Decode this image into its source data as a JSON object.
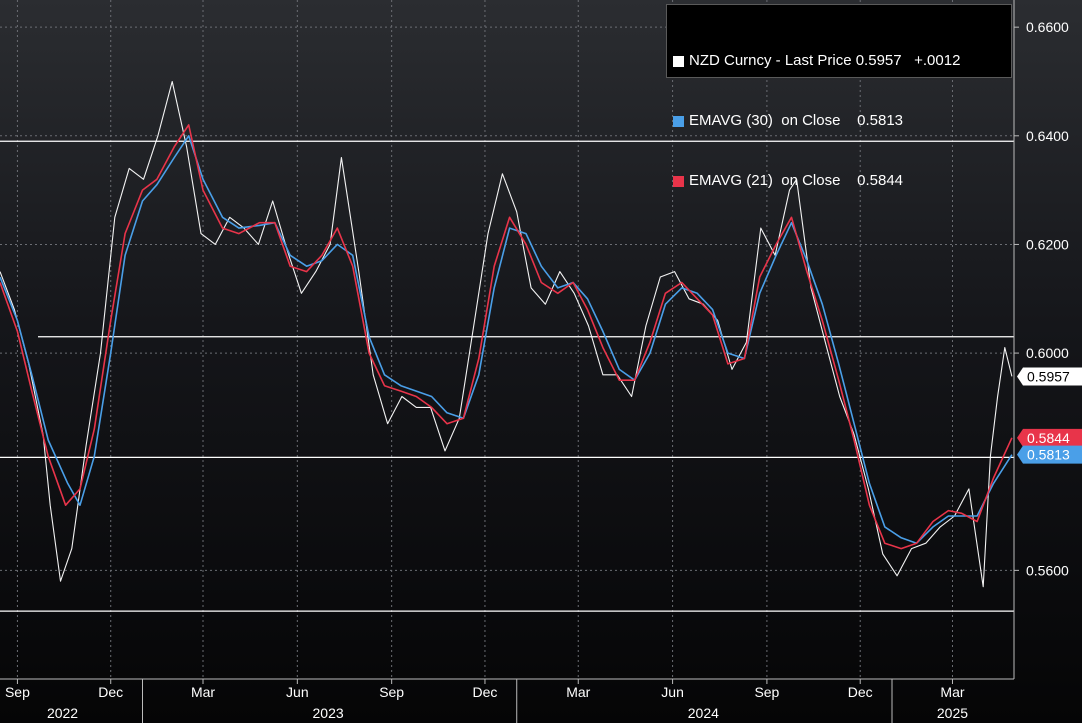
{
  "chart_data": {
    "type": "line",
    "title": "",
    "xlabel": "",
    "ylabel": "",
    "ylim": [
      0.54,
      0.665
    ],
    "xlim": [
      "2022-08-15",
      "2025-04-30"
    ],
    "grid": true,
    "legend_position": "top-right",
    "y_ticks": [
      "0.5600",
      "0.6000",
      "0.6200",
      "0.6400",
      "0.6600"
    ],
    "x_month_ticks": [
      {
        "label": "Sep",
        "date": "2022-09-01"
      },
      {
        "label": "Dec",
        "date": "2022-12-01"
      },
      {
        "label": "Mar",
        "date": "2023-03-01"
      },
      {
        "label": "Jun",
        "date": "2023-06-01"
      },
      {
        "label": "Sep",
        "date": "2023-09-01"
      },
      {
        "label": "Dec",
        "date": "2023-12-01"
      },
      {
        "label": "Mar",
        "date": "2024-03-01"
      },
      {
        "label": "Jun",
        "date": "2024-06-01"
      },
      {
        "label": "Sep",
        "date": "2024-09-01"
      },
      {
        "label": "Dec",
        "date": "2024-12-01"
      },
      {
        "label": "Mar",
        "date": "2025-03-01"
      }
    ],
    "x_year_ticks": [
      {
        "label": "2022",
        "date": "2022-10-15"
      },
      {
        "label": "2023",
        "date": "2023-07-01"
      },
      {
        "label": "2024",
        "date": "2024-07-01"
      },
      {
        "label": "2025",
        "date": "2025-03-01"
      }
    ],
    "reference_lines": [
      0.639,
      0.603,
      0.5808,
      0.5525
    ],
    "series": [
      {
        "name": "NZD Curncy - Last Price",
        "legend_value": "0.5957",
        "legend_change": "+.0012",
        "color": "#ffffff",
        "x": [
          "2022-08-15",
          "2022-08-29",
          "2022-09-12",
          "2022-09-26",
          "2022-10-03",
          "2022-10-13",
          "2022-10-24",
          "2022-11-07",
          "2022-11-21",
          "2022-12-05",
          "2022-12-19",
          "2023-01-02",
          "2023-01-16",
          "2023-01-30",
          "2023-02-13",
          "2023-02-27",
          "2023-03-13",
          "2023-03-27",
          "2023-04-10",
          "2023-04-24",
          "2023-05-08",
          "2023-05-22",
          "2023-06-05",
          "2023-06-19",
          "2023-07-03",
          "2023-07-14",
          "2023-07-31",
          "2023-08-14",
          "2023-08-28",
          "2023-09-11",
          "2023-09-25",
          "2023-10-09",
          "2023-10-23",
          "2023-11-06",
          "2023-11-20",
          "2023-12-04",
          "2023-12-18",
          "2024-01-01",
          "2024-01-15",
          "2024-01-29",
          "2024-02-12",
          "2024-02-26",
          "2024-03-11",
          "2024-03-25",
          "2024-04-08",
          "2024-04-22",
          "2024-05-06",
          "2024-05-20",
          "2024-06-03",
          "2024-06-17",
          "2024-07-01",
          "2024-07-15",
          "2024-07-29",
          "2024-08-12",
          "2024-08-26",
          "2024-09-09",
          "2024-09-23",
          "2024-09-30",
          "2024-10-14",
          "2024-10-28",
          "2024-11-11",
          "2024-11-25",
          "2024-12-09",
          "2024-12-23",
          "2025-01-06",
          "2025-01-20",
          "2025-02-03",
          "2025-02-17",
          "2025-03-03",
          "2025-03-17",
          "2025-03-31",
          "2025-04-07",
          "2025-04-14",
          "2025-04-21",
          "2025-04-28"
        ],
        "values": [
          0.615,
          0.608,
          0.598,
          0.585,
          0.572,
          0.558,
          0.564,
          0.583,
          0.6,
          0.625,
          0.634,
          0.632,
          0.64,
          0.65,
          0.638,
          0.622,
          0.62,
          0.625,
          0.623,
          0.62,
          0.628,
          0.619,
          0.611,
          0.615,
          0.62,
          0.636,
          0.615,
          0.596,
          0.587,
          0.592,
          0.59,
          0.59,
          0.582,
          0.588,
          0.605,
          0.622,
          0.633,
          0.626,
          0.612,
          0.609,
          0.615,
          0.611,
          0.605,
          0.596,
          0.596,
          0.592,
          0.605,
          0.614,
          0.615,
          0.61,
          0.609,
          0.606,
          0.597,
          0.602,
          0.623,
          0.618,
          0.63,
          0.632,
          0.612,
          0.602,
          0.592,
          0.585,
          0.575,
          0.563,
          0.559,
          0.564,
          0.565,
          0.568,
          0.57,
          0.575,
          0.557,
          0.581,
          0.592,
          0.601,
          0.5957
        ]
      },
      {
        "name": "EMAVG (30)  on Close",
        "legend_value": "0.5813",
        "color": "#4a9fe8",
        "x": [
          "2022-08-15",
          "2022-09-01",
          "2022-09-15",
          "2022-10-01",
          "2022-10-20",
          "2022-11-01",
          "2022-11-15",
          "2022-12-01",
          "2022-12-15",
          "2023-01-01",
          "2023-01-15",
          "2023-02-01",
          "2023-02-15",
          "2023-03-01",
          "2023-03-20",
          "2023-04-05",
          "2023-04-25",
          "2023-05-10",
          "2023-05-25",
          "2023-06-10",
          "2023-06-25",
          "2023-07-10",
          "2023-07-25",
          "2023-08-10",
          "2023-08-25",
          "2023-09-10",
          "2023-09-25",
          "2023-10-10",
          "2023-10-25",
          "2023-11-10",
          "2023-11-25",
          "2023-12-10",
          "2023-12-25",
          "2024-01-10",
          "2024-01-25",
          "2024-02-10",
          "2024-02-25",
          "2024-03-10",
          "2024-03-25",
          "2024-04-10",
          "2024-04-25",
          "2024-05-10",
          "2024-05-25",
          "2024-06-10",
          "2024-06-25",
          "2024-07-10",
          "2024-07-25",
          "2024-08-10",
          "2024-08-25",
          "2024-09-10",
          "2024-09-25",
          "2024-10-10",
          "2024-10-25",
          "2024-11-10",
          "2024-11-25",
          "2024-12-10",
          "2024-12-25",
          "2025-01-10",
          "2025-01-25",
          "2025-02-10",
          "2025-02-25",
          "2025-03-10",
          "2025-03-25",
          "2025-04-10",
          "2025-04-28"
        ],
        "values": [
          0.614,
          0.606,
          0.596,
          0.584,
          0.576,
          0.572,
          0.581,
          0.6,
          0.618,
          0.628,
          0.631,
          0.636,
          0.64,
          0.632,
          0.625,
          0.623,
          0.6235,
          0.624,
          0.618,
          0.616,
          0.617,
          0.62,
          0.618,
          0.603,
          0.596,
          0.594,
          0.593,
          0.592,
          0.589,
          0.588,
          0.596,
          0.612,
          0.623,
          0.622,
          0.616,
          0.612,
          0.613,
          0.61,
          0.604,
          0.597,
          0.595,
          0.6,
          0.609,
          0.612,
          0.611,
          0.608,
          0.6,
          0.599,
          0.611,
          0.618,
          0.624,
          0.617,
          0.609,
          0.598,
          0.587,
          0.576,
          0.568,
          0.566,
          0.565,
          0.568,
          0.57,
          0.57,
          0.57,
          0.576,
          0.5813
        ]
      },
      {
        "name": "EMAVG (21)  on Close",
        "legend_value": "0.5844",
        "color": "#e8344a",
        "x": [
          "2022-08-15",
          "2022-09-01",
          "2022-09-15",
          "2022-10-01",
          "2022-10-18",
          "2022-11-01",
          "2022-11-15",
          "2022-12-01",
          "2022-12-15",
          "2023-01-01",
          "2023-01-15",
          "2023-02-01",
          "2023-02-15",
          "2023-03-01",
          "2023-03-20",
          "2023-04-05",
          "2023-04-25",
          "2023-05-10",
          "2023-05-25",
          "2023-06-10",
          "2023-06-25",
          "2023-07-10",
          "2023-07-25",
          "2023-08-10",
          "2023-08-25",
          "2023-09-10",
          "2023-09-25",
          "2023-10-10",
          "2023-10-25",
          "2023-11-10",
          "2023-11-25",
          "2023-12-10",
          "2023-12-25",
          "2024-01-10",
          "2024-01-25",
          "2024-02-10",
          "2024-02-25",
          "2024-03-10",
          "2024-03-25",
          "2024-04-10",
          "2024-04-25",
          "2024-05-10",
          "2024-05-25",
          "2024-06-10",
          "2024-06-25",
          "2024-07-10",
          "2024-07-25",
          "2024-08-10",
          "2024-08-25",
          "2024-09-10",
          "2024-09-25",
          "2024-10-10",
          "2024-10-25",
          "2024-11-10",
          "2024-11-25",
          "2024-12-10",
          "2024-12-25",
          "2025-01-10",
          "2025-01-25",
          "2025-02-10",
          "2025-02-25",
          "2025-03-10",
          "2025-03-25",
          "2025-04-10",
          "2025-04-28"
        ],
        "values": [
          0.613,
          0.604,
          0.593,
          0.581,
          0.572,
          0.575,
          0.586,
          0.606,
          0.622,
          0.63,
          0.632,
          0.638,
          0.642,
          0.63,
          0.623,
          0.622,
          0.624,
          0.624,
          0.616,
          0.615,
          0.618,
          0.623,
          0.616,
          0.6,
          0.594,
          0.593,
          0.592,
          0.59,
          0.587,
          0.588,
          0.599,
          0.616,
          0.625,
          0.62,
          0.613,
          0.611,
          0.613,
          0.608,
          0.601,
          0.595,
          0.595,
          0.602,
          0.611,
          0.613,
          0.61,
          0.607,
          0.598,
          0.599,
          0.614,
          0.62,
          0.625,
          0.615,
          0.606,
          0.595,
          0.584,
          0.572,
          0.565,
          0.564,
          0.565,
          0.569,
          0.571,
          0.5705,
          0.569,
          0.577,
          0.5844
        ]
      }
    ],
    "axis_badges": [
      {
        "value": "0.5957",
        "series": "NZD Curncy - Last Price",
        "bg": "#ffffff",
        "fg": "#000000"
      },
      {
        "value": "0.5844",
        "series": "EMAVG (21)  on Close",
        "bg": "#e8344a",
        "fg": "#ffffff"
      },
      {
        "value": "0.5813",
        "series": "EMAVG (30)  on Close",
        "bg": "#4a9fe8",
        "fg": "#ffffff"
      }
    ]
  }
}
